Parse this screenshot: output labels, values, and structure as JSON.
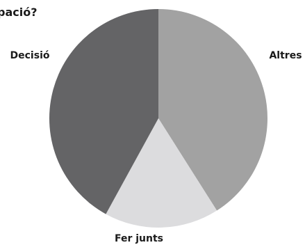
{
  "chart_data": {
    "type": "pie",
    "title": "pació?",
    "slices": [
      {
        "label": "Altres",
        "value": 41,
        "color": "#a2a2a2"
      },
      {
        "label": "Fer junts",
        "value": 17,
        "color": "#dcdcde"
      },
      {
        "label": "Decisió",
        "value": 42,
        "color": "#646466"
      }
    ],
    "start_angle_deg": 0,
    "direction": "clockwise",
    "legend": "none"
  }
}
